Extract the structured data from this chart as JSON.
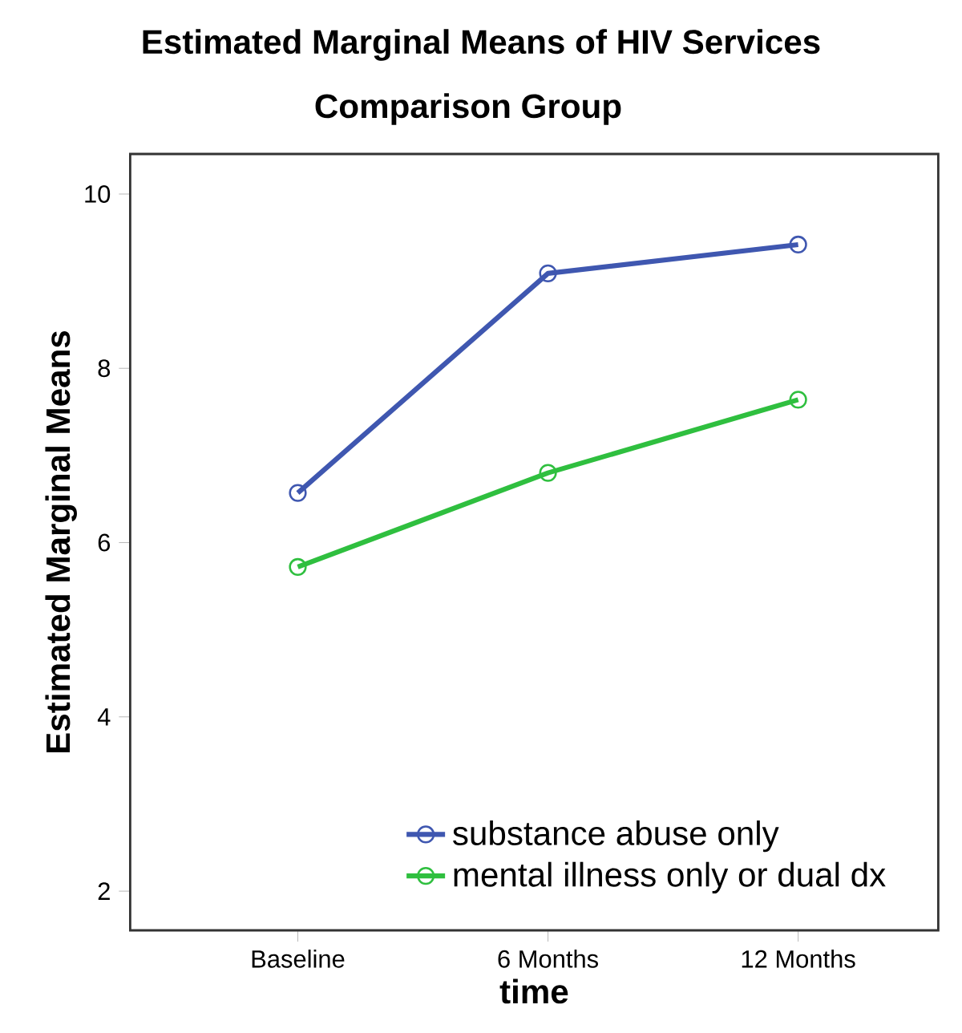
{
  "chart_data": {
    "type": "line",
    "title": "Estimated Marginal Means of HIV Services",
    "subtitle": "Comparison Group",
    "xlabel": "time",
    "ylabel": "Estimated Marginal Means",
    "categories": [
      "Baseline",
      "6 Months",
      "12 Months"
    ],
    "series": [
      {
        "name": "substance abuse only",
        "color": "#3f57b0",
        "values": [
          6.57,
          9.09,
          9.42
        ]
      },
      {
        "name": "mental illness only or dual dx",
        "color": "#2fbf3f",
        "values": [
          5.72,
          6.8,
          7.64
        ]
      }
    ],
    "ylim": [
      1.55,
      10.46
    ],
    "yticks": [
      2,
      4,
      6,
      8,
      10
    ],
    "grid": false,
    "legend": "bottom right",
    "marker": "circle",
    "line_style": "solid"
  }
}
